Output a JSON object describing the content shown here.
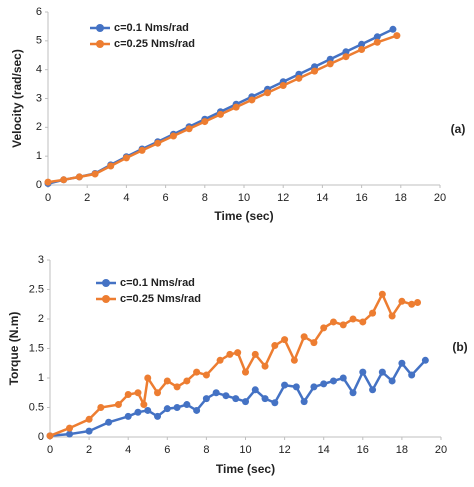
{
  "chart_data": [
    {
      "type": "line",
      "annotation": "(a)",
      "xlabel": "Time (sec)",
      "ylabel": "Velocity (rad/sec)",
      "xlim": [
        0,
        20
      ],
      "xticks": [
        0,
        2,
        4,
        6,
        8,
        10,
        12,
        14,
        16,
        18,
        20
      ],
      "ylim": [
        0,
        6
      ],
      "yticks": [
        0,
        1,
        2,
        3,
        4,
        5,
        6
      ],
      "legend": "upper left",
      "series": [
        {
          "name": "c=0.1 Nms/rad",
          "color": "#4472c4",
          "x": [
            0,
            0.8,
            1.6,
            2.4,
            3.2,
            4,
            4.8,
            5.6,
            6.4,
            7.2,
            8,
            8.8,
            9.6,
            10.4,
            11.2,
            12,
            12.8,
            13.6,
            14.4,
            15.2,
            16,
            16.8,
            17.6
          ],
          "values": [
            0.05,
            0.18,
            0.28,
            0.4,
            0.7,
            0.98,
            1.25,
            1.5,
            1.76,
            2.02,
            2.28,
            2.54,
            2.8,
            3.06,
            3.32,
            3.58,
            3.84,
            4.1,
            4.36,
            4.62,
            4.88,
            5.14,
            5.4
          ]
        },
        {
          "name": "c=0.25 Nms/rad",
          "color": "#ed7d31",
          "x": [
            0,
            0.8,
            1.6,
            2.4,
            3.2,
            4,
            4.8,
            5.6,
            6.4,
            7.2,
            8,
            8.8,
            9.6,
            10.4,
            11.2,
            12,
            12.8,
            13.6,
            14.4,
            15.2,
            16,
            16.8,
            17.8
          ],
          "values": [
            0.1,
            0.18,
            0.28,
            0.38,
            0.66,
            0.94,
            1.2,
            1.45,
            1.7,
            1.95,
            2.2,
            2.45,
            2.7,
            2.95,
            3.2,
            3.45,
            3.7,
            3.95,
            4.2,
            4.45,
            4.7,
            4.95,
            5.18
          ]
        }
      ]
    },
    {
      "type": "line",
      "annotation": "(b)",
      "xlabel": "Time (sec)",
      "ylabel": "Torque (N.m)",
      "xlim": [
        0,
        20
      ],
      "xticks": [
        0,
        2,
        4,
        6,
        8,
        10,
        12,
        14,
        16,
        18,
        20
      ],
      "ylim": [
        0,
        3
      ],
      "yticks": [
        0,
        0.5,
        1,
        1.5,
        2,
        2.5,
        3
      ],
      "legend": "upper left",
      "series": [
        {
          "name": "c=0.1 Nms/rad",
          "color": "#4472c4",
          "x": [
            0,
            1,
            2,
            3,
            4,
            4.5,
            5,
            5.5,
            6,
            6.5,
            7,
            7.5,
            8,
            8.5,
            9,
            9.5,
            10,
            10.5,
            11,
            11.5,
            12,
            12.6,
            13,
            13.5,
            14,
            14.5,
            15,
            15.5,
            16,
            16.5,
            17,
            17.5,
            18,
            18.5,
            19.2
          ],
          "values": [
            0.02,
            0.05,
            0.1,
            0.25,
            0.35,
            0.42,
            0.45,
            0.35,
            0.48,
            0.5,
            0.55,
            0.45,
            0.65,
            0.75,
            0.7,
            0.65,
            0.6,
            0.8,
            0.65,
            0.58,
            0.88,
            0.85,
            0.6,
            0.85,
            0.9,
            0.95,
            1.0,
            0.75,
            1.1,
            0.8,
            1.1,
            0.95,
            1.25,
            1.05,
            1.3
          ]
        },
        {
          "name": "c=0.25 Nms/rad",
          "color": "#ed7d31",
          "x": [
            0,
            1,
            2,
            2.6,
            3.5,
            4,
            4.5,
            4.8,
            5,
            5.5,
            6,
            6.5,
            7,
            7.5,
            8,
            8.7,
            9.2,
            9.6,
            10,
            10.5,
            11,
            11.5,
            12,
            12.5,
            13,
            13.5,
            14,
            14.5,
            15,
            15.5,
            16,
            16.5,
            17,
            17.5,
            18,
            18.5,
            18.8
          ],
          "values": [
            0.02,
            0.15,
            0.3,
            0.5,
            0.55,
            0.72,
            0.75,
            0.55,
            1.0,
            0.75,
            0.95,
            0.85,
            0.95,
            1.1,
            1.05,
            1.3,
            1.4,
            1.43,
            1.1,
            1.4,
            1.2,
            1.55,
            1.65,
            1.3,
            1.7,
            1.6,
            1.85,
            1.95,
            1.9,
            2.0,
            1.95,
            2.1,
            2.42,
            2.05,
            2.3,
            2.25,
            2.28
          ]
        }
      ]
    }
  ]
}
